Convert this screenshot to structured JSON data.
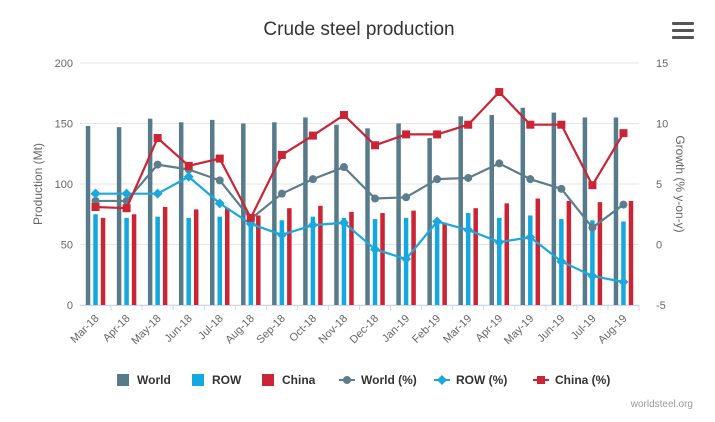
{
  "chart_data": {
    "type": "bar",
    "title": "Crude steel production",
    "ylabel": "Production (Mt)",
    "y2label": "Growth (% y-on-y)",
    "ylim": [
      0,
      200
    ],
    "y2lim": [
      -5,
      15
    ],
    "yticks": [
      "0",
      "50",
      "100",
      "150",
      "200"
    ],
    "y2ticks": [
      "-5",
      "0",
      "5",
      "10",
      "15"
    ],
    "grid": true,
    "legend_position": "bottom",
    "categories": [
      "Mar-18",
      "Apr-18",
      "May-18",
      "Jun-18",
      "Jul-18",
      "Aug-18",
      "Sep-18",
      "Oct-18",
      "Nov-18",
      "Dec-18",
      "Jan-19",
      "Feb-19",
      "Mar-19",
      "Apr-19",
      "May-19",
      "Jun-19",
      "Jul-19",
      "Aug-19"
    ],
    "series": [
      {
        "name": "World",
        "kind": "bar",
        "axis": "left",
        "color": "#587b8b",
        "values": [
          148,
          147,
          154,
          151,
          153,
          150,
          151,
          155,
          149,
          146,
          150,
          138,
          156,
          157,
          163,
          159,
          155,
          155
        ]
      },
      {
        "name": "ROW",
        "kind": "bar",
        "axis": "left",
        "color": "#13a8e0",
        "values": [
          75,
          72,
          73,
          72,
          73,
          73,
          70,
          73,
          72,
          71,
          72,
          70,
          76,
          72,
          74,
          71,
          70,
          69
        ]
      },
      {
        "name": "China",
        "kind": "bar",
        "axis": "left",
        "color": "#cb2434",
        "values": [
          72,
          75,
          81,
          79,
          80,
          74,
          80,
          82,
          77,
          76,
          78,
          68,
          80,
          84,
          88,
          86,
          85,
          86
        ]
      },
      {
        "name": "World (%)",
        "kind": "line",
        "axis": "right",
        "color": "#5e7d8c",
        "marker": "circle",
        "values": [
          3.6,
          3.6,
          6.6,
          6.2,
          5.3,
          2.1,
          4.2,
          5.4,
          6.4,
          3.8,
          3.9,
          5.4,
          5.5,
          6.7,
          5.4,
          4.6,
          1.4,
          3.3
        ]
      },
      {
        "name": "ROW (%)",
        "kind": "line",
        "axis": "right",
        "color": "#1aa8dd",
        "marker": "diamond",
        "values": [
          4.2,
          4.2,
          4.2,
          5.6,
          3.4,
          1.7,
          0.8,
          1.6,
          1.8,
          -0.4,
          -1.2,
          1.9,
          1.2,
          0.2,
          0.6,
          -1.4,
          -2.6,
          -3.1
        ]
      },
      {
        "name": "China (%)",
        "kind": "line",
        "axis": "right",
        "color": "#cb2434",
        "marker": "square",
        "values": [
          3.1,
          3.0,
          8.8,
          6.5,
          7.1,
          2.2,
          7.4,
          9.0,
          10.7,
          8.2,
          9.1,
          9.1,
          9.9,
          12.6,
          9.9,
          9.9,
          4.9,
          9.2
        ]
      }
    ]
  },
  "credit": "worldsteel.org",
  "menu_icon": "hamburger-menu-icon"
}
